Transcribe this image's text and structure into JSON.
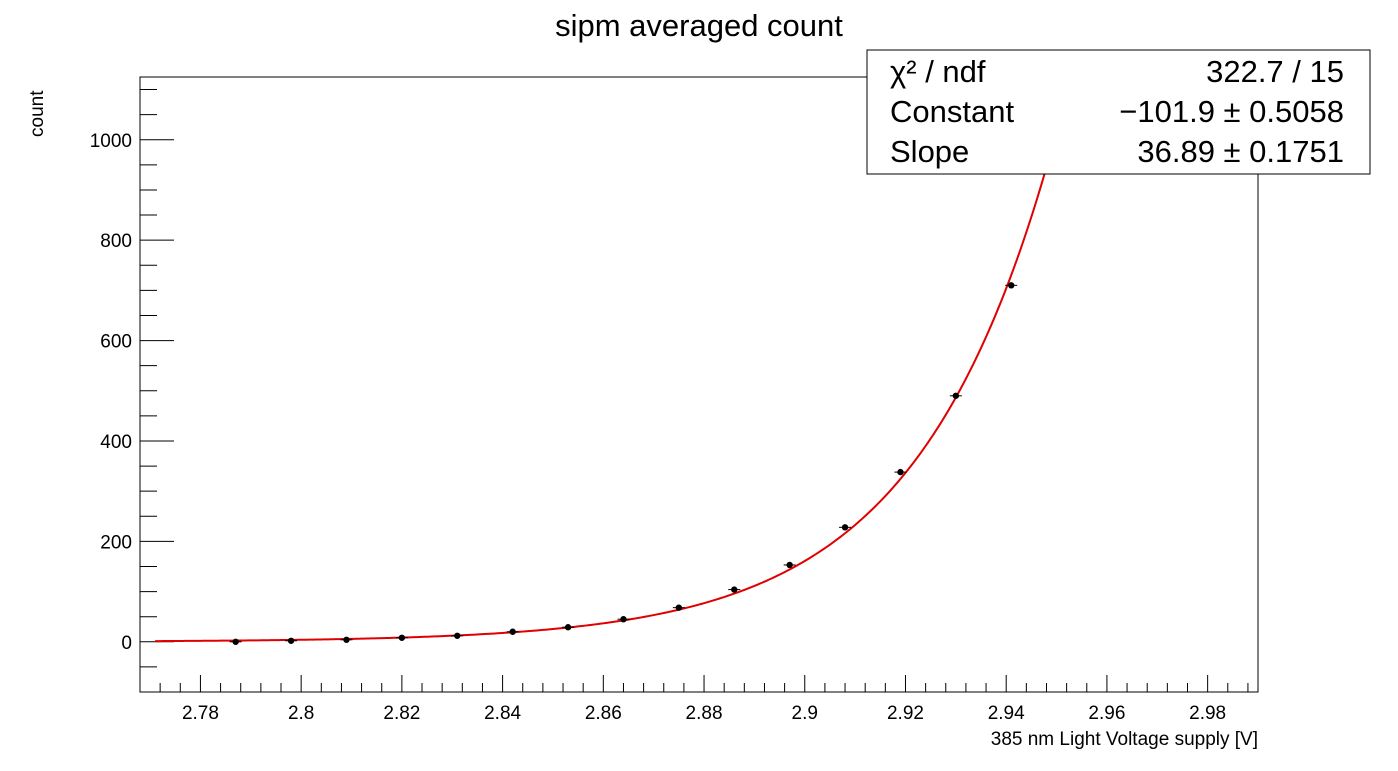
{
  "chart_data": {
    "type": "scatter",
    "title": "sipm averaged count",
    "xlabel": "385 nm Light Voltage supply [V]",
    "ylabel": "count",
    "xlim": [
      2.768,
      2.99
    ],
    "ylim": [
      -100,
      1125
    ],
    "x_ticks": [
      "2.78",
      "2.8",
      "2.82",
      "2.84",
      "2.86",
      "2.88",
      "2.9",
      "2.92",
      "2.94",
      "2.96",
      "2.98"
    ],
    "y_ticks": [
      "0",
      "200",
      "400",
      "600",
      "800",
      "1000"
    ],
    "grid": false,
    "marker_color": "#000000",
    "fit_color": "#e00000",
    "series": [
      {
        "x": [
          2.787,
          2.798,
          2.809,
          2.82,
          2.831,
          2.842,
          2.853,
          2.864,
          2.875,
          2.886,
          2.897,
          2.908,
          2.919,
          2.93,
          2.941
        ],
        "y": [
          0,
          2,
          4,
          8,
          12,
          20,
          29,
          45,
          68,
          104,
          153,
          228,
          338,
          490,
          710
        ]
      }
    ],
    "fit": {
      "type": "expo",
      "constant": -101.9,
      "slope": 36.89
    },
    "stats_box": {
      "rows": [
        {
          "label": "χ² / ndf",
          "value": "322.7 / 15"
        },
        {
          "label": "Constant",
          "value": "−101.9 ± 0.5058"
        },
        {
          "label": "Slope",
          "value": "36.89 ± 0.1751"
        }
      ]
    }
  }
}
